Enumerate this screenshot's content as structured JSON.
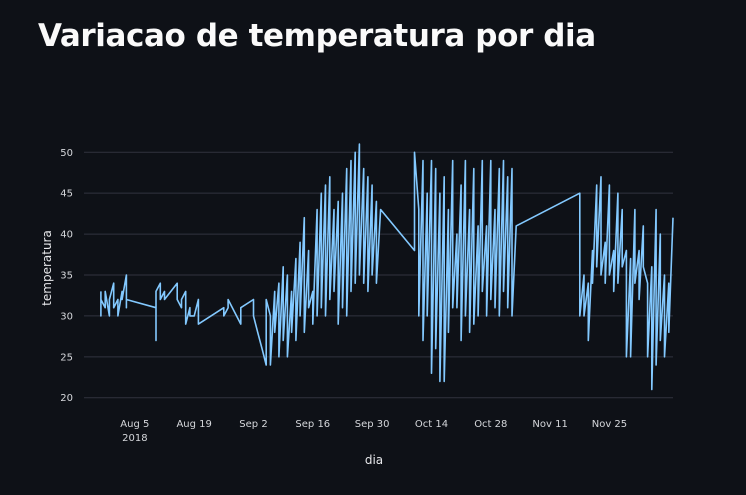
{
  "title": "Variacao de temperatura por dia",
  "colors": {
    "background": "#0e1117",
    "line": "#83c9ff",
    "grid": "#31333f",
    "text": "#fafafa"
  },
  "chart_data": {
    "type": "line",
    "xlabel": "dia",
    "ylabel": "temperatura",
    "xlim": [
      "2018-07-24",
      "2018-12-10"
    ],
    "ylim": [
      18.5,
      51.5
    ],
    "grid": true,
    "y_ticks": [
      20,
      25,
      30,
      35,
      40,
      45,
      50
    ],
    "x_ticks": [
      {
        "date": "2018-08-05",
        "label": "Aug 5",
        "sublabel": "2018"
      },
      {
        "date": "2018-08-19",
        "label": "Aug 19"
      },
      {
        "date": "2018-09-02",
        "label": "Sep 2"
      },
      {
        "date": "2018-09-16",
        "label": "Sep 16"
      },
      {
        "date": "2018-09-30",
        "label": "Sep 30"
      },
      {
        "date": "2018-10-14",
        "label": "Oct 14"
      },
      {
        "date": "2018-10-28",
        "label": "Oct 28"
      },
      {
        "date": "2018-11-11",
        "label": "Nov 11"
      },
      {
        "date": "2018-11-25",
        "label": "Nov 25"
      }
    ],
    "series": [
      {
        "x": [
          "2018-07-28",
          "2018-07-28",
          "2018-07-28",
          "2018-07-29",
          "2018-07-29",
          "2018-07-30",
          "2018-07-30",
          "2018-07-31",
          "2018-07-31",
          "2018-08-01",
          "2018-08-01",
          "2018-08-02",
          "2018-08-02",
          "2018-08-03",
          "2018-08-03",
          "2018-08-03",
          "2018-08-10",
          "2018-08-10",
          "2018-08-10",
          "2018-08-11",
          "2018-08-11",
          "2018-08-12",
          "2018-08-12",
          "2018-08-15",
          "2018-08-15",
          "2018-08-16",
          "2018-08-16",
          "2018-08-17",
          "2018-08-17",
          "2018-08-18",
          "2018-08-18",
          "2018-08-19",
          "2018-08-19",
          "2018-08-20",
          "2018-08-20",
          "2018-08-26",
          "2018-08-26",
          "2018-08-27",
          "2018-08-27",
          "2018-08-30",
          "2018-08-30",
          "2018-09-02",
          "2018-09-02",
          "2018-09-03",
          "2018-09-04",
          "2018-09-05",
          "2018-09-05",
          "2018-09-06",
          "2018-09-06",
          "2018-09-06",
          "2018-09-07",
          "2018-09-07",
          "2018-09-08",
          "2018-09-08",
          "2018-09-09",
          "2018-09-09",
          "2018-09-10",
          "2018-09-10",
          "2018-09-11",
          "2018-09-11",
          "2018-09-12",
          "2018-09-12",
          "2018-09-13",
          "2018-09-13",
          "2018-09-14",
          "2018-09-14",
          "2018-09-15",
          "2018-09-15",
          "2018-09-16",
          "2018-09-16",
          "2018-09-17",
          "2018-09-17",
          "2018-09-18",
          "2018-09-18",
          "2018-09-19",
          "2018-09-19",
          "2018-09-20",
          "2018-09-20",
          "2018-09-21",
          "2018-09-21",
          "2018-09-22",
          "2018-09-22",
          "2018-09-23",
          "2018-09-23",
          "2018-09-24",
          "2018-09-24",
          "2018-09-25",
          "2018-09-25",
          "2018-09-26",
          "2018-09-26",
          "2018-09-27",
          "2018-09-27",
          "2018-09-28",
          "2018-09-28",
          "2018-09-29",
          "2018-09-29",
          "2018-09-30",
          "2018-09-30",
          "2018-10-01",
          "2018-10-01",
          "2018-10-02",
          "2018-10-10",
          "2018-10-10",
          "2018-10-11",
          "2018-10-11",
          "2018-10-12",
          "2018-10-12",
          "2018-10-13",
          "2018-10-13",
          "2018-10-14",
          "2018-10-14",
          "2018-10-15",
          "2018-10-15",
          "2018-10-16",
          "2018-10-16",
          "2018-10-17",
          "2018-10-17",
          "2018-10-18",
          "2018-10-18",
          "2018-10-19",
          "2018-10-19",
          "2018-10-20",
          "2018-10-20",
          "2018-10-21",
          "2018-10-21",
          "2018-10-22",
          "2018-10-22",
          "2018-10-23",
          "2018-10-23",
          "2018-10-24",
          "2018-10-24",
          "2018-10-25",
          "2018-10-25",
          "2018-10-26",
          "2018-10-26",
          "2018-10-27",
          "2018-10-27",
          "2018-10-28",
          "2018-10-28",
          "2018-10-29",
          "2018-10-29",
          "2018-10-30",
          "2018-10-30",
          "2018-10-31",
          "2018-10-31",
          "2018-11-01",
          "2018-11-01",
          "2018-11-02",
          "2018-11-02",
          "2018-11-03",
          "2018-11-18",
          "2018-11-18",
          "2018-11-19",
          "2018-11-19",
          "2018-11-20",
          "2018-11-20",
          "2018-11-21",
          "2018-11-21",
          "2018-11-22",
          "2018-11-22",
          "2018-11-23",
          "2018-11-23",
          "2018-11-24",
          "2018-11-24",
          "2018-11-25",
          "2018-11-25",
          "2018-11-26",
          "2018-11-26",
          "2018-11-27",
          "2018-11-27",
          "2018-11-28",
          "2018-11-28",
          "2018-11-29",
          "2018-11-29",
          "2018-11-30",
          "2018-11-30",
          "2018-12-01",
          "2018-12-01",
          "2018-12-02",
          "2018-12-02",
          "2018-12-03",
          "2018-12-03",
          "2018-12-04",
          "2018-12-04",
          "2018-12-05",
          "2018-12-05",
          "2018-12-06",
          "2018-12-06",
          "2018-12-07",
          "2018-12-07",
          "2018-12-08",
          "2018-12-08",
          "2018-12-09",
          "2018-12-09",
          "2018-12-10"
        ],
        "y": [
          33,
          30,
          32,
          31,
          33,
          30,
          32,
          34,
          31,
          32,
          30,
          33,
          32,
          35,
          31,
          32,
          31,
          27,
          33,
          34,
          32,
          33,
          32,
          34,
          32,
          31,
          32,
          33,
          29,
          31,
          30,
          30,
          30,
          32,
          29,
          31,
          30,
          31,
          32,
          29,
          31,
          32,
          30,
          28,
          26,
          24,
          32,
          30,
          27,
          24,
          33,
          28,
          34,
          25,
          36,
          27,
          35,
          25,
          33,
          28,
          37,
          27,
          39,
          30,
          42,
          28,
          38,
          31,
          33,
          29,
          43,
          30,
          45,
          31,
          46,
          30,
          47,
          32,
          43,
          33,
          44,
          29,
          45,
          31,
          48,
          30,
          49,
          33,
          50,
          34,
          51,
          35,
          48,
          34,
          47,
          33,
          46,
          35,
          44,
          34,
          43,
          38,
          50,
          43,
          30,
          49,
          27,
          45,
          30,
          49,
          23,
          48,
          26,
          45,
          22,
          47,
          22,
          43,
          28,
          49,
          31,
          40,
          31,
          46,
          27,
          49,
          30,
          43,
          28,
          48,
          29,
          41,
          30,
          49,
          33,
          41,
          30,
          49,
          32,
          43,
          31,
          48,
          30,
          49,
          33,
          47,
          31,
          48,
          30,
          41,
          45,
          30,
          35,
          30,
          34,
          27,
          38,
          34,
          46,
          36,
          47,
          35,
          39,
          34,
          46,
          35,
          38,
          33,
          45,
          34,
          43,
          36,
          38,
          25,
          37,
          25,
          43,
          34,
          38,
          32,
          41,
          36,
          34,
          25,
          36,
          21,
          43,
          24,
          40,
          27,
          35,
          25,
          34,
          28,
          42
        ]
      }
    ]
  }
}
